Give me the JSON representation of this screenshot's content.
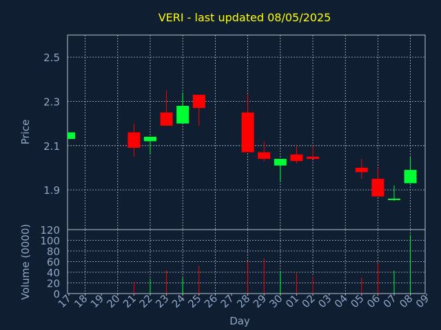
{
  "title": "VERI - last updated 08/05/2025",
  "colors": {
    "background": "#0f1e30",
    "title": "#ffff00",
    "axis_text": "#8fa8c8",
    "grid": "#b8c4d4",
    "frame": "#b8c4d4",
    "up": "#00ff33",
    "down": "#ff0000"
  },
  "chart_data": [
    {
      "type": "candlestick",
      "ylabel": "Price",
      "ylim": [
        1.72,
        2.6
      ],
      "yticks": [
        1.9,
        2.1,
        2.3,
        2.5
      ],
      "yticklabels": [
        "1.9",
        "2.1",
        "2.3",
        "2.5"
      ],
      "grid": true,
      "candles": [
        {
          "day": "17",
          "open": 2.13,
          "high": 2.16,
          "low": 2.13,
          "close": 2.16
        },
        {
          "day": "21",
          "open": 2.16,
          "high": 2.2,
          "low": 2.05,
          "close": 2.09
        },
        {
          "day": "22",
          "open": 2.12,
          "high": 2.14,
          "low": 2.06,
          "close": 2.14
        },
        {
          "day": "23",
          "open": 2.25,
          "high": 2.35,
          "low": 2.19,
          "close": 2.19
        },
        {
          "day": "24",
          "open": 2.2,
          "high": 2.34,
          "low": 2.2,
          "close": 2.28
        },
        {
          "day": "25",
          "open": 2.33,
          "high": 2.33,
          "low": 2.19,
          "close": 2.27
        },
        {
          "day": "28",
          "open": 2.25,
          "high": 2.33,
          "low": 2.07,
          "close": 2.07
        },
        {
          "day": "29",
          "open": 2.07,
          "high": 2.12,
          "low": 2.03,
          "close": 2.04
        },
        {
          "day": "30",
          "open": 2.01,
          "high": 2.04,
          "low": 1.94,
          "close": 2.04
        },
        {
          "day": "01",
          "open": 2.06,
          "high": 2.1,
          "low": 2.02,
          "close": 2.03
        },
        {
          "day": "02",
          "open": 2.05,
          "high": 2.1,
          "low": 2.04,
          "close": 2.04
        },
        {
          "day": "05",
          "open": 2.0,
          "high": 2.04,
          "low": 1.95,
          "close": 1.98
        },
        {
          "day": "06",
          "open": 1.95,
          "high": 2.0,
          "low": 1.87,
          "close": 1.87
        },
        {
          "day": "07",
          "open": 1.855,
          "high": 1.92,
          "low": 1.85,
          "close": 1.86
        },
        {
          "day": "08",
          "open": 1.93,
          "high": 2.05,
          "low": 1.93,
          "close": 1.99
        }
      ]
    },
    {
      "type": "bar",
      "ylabel": "Volume (0000)",
      "xlabel": "Day",
      "ylim": [
        0,
        120
      ],
      "yticks": [
        0,
        20,
        40,
        60,
        80,
        100,
        120
      ],
      "yticklabels": [
        "0",
        "20",
        "40",
        "60",
        "80",
        "100",
        "120"
      ],
      "grid": true,
      "categories": [
        "17",
        "18",
        "19",
        "20",
        "21",
        "22",
        "23",
        "24",
        "25",
        "26",
        "27",
        "28",
        "29",
        "30",
        "01",
        "02",
        "03",
        "04",
        "05",
        "06",
        "07",
        "08",
        "09"
      ],
      "bars": [
        {
          "day": "17",
          "value": 0,
          "color": "up"
        },
        {
          "day": "21",
          "value": 22,
          "color": "down"
        },
        {
          "day": "22",
          "value": 28,
          "color": "up"
        },
        {
          "day": "23",
          "value": 44,
          "color": "down"
        },
        {
          "day": "24",
          "value": 29,
          "color": "up"
        },
        {
          "day": "25",
          "value": 52,
          "color": "down"
        },
        {
          "day": "28",
          "value": 60,
          "color": "down"
        },
        {
          "day": "29",
          "value": 66,
          "color": "down"
        },
        {
          "day": "30",
          "value": 42,
          "color": "up"
        },
        {
          "day": "01",
          "value": 38,
          "color": "down"
        },
        {
          "day": "02",
          "value": 32,
          "color": "down"
        },
        {
          "day": "05",
          "value": 30,
          "color": "down"
        },
        {
          "day": "06",
          "value": 57,
          "color": "down"
        },
        {
          "day": "07",
          "value": 43,
          "color": "up"
        },
        {
          "day": "08",
          "value": 110,
          "color": "up"
        }
      ]
    }
  ]
}
